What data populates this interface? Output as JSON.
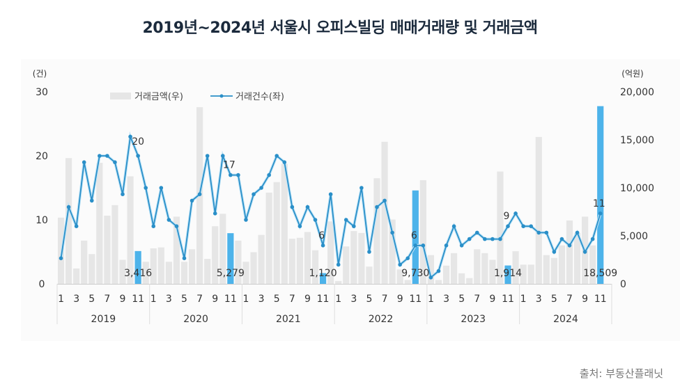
{
  "title": "2019년~2024년 서울시 오피스빌딩 매매거래량 및 거래금액",
  "source": "출처: 부동산플래닛",
  "colors": {
    "bar_default": "#e6e6e6",
    "bar_highlight": "#4db3ea",
    "line": "#2a8fc8",
    "title": "#1b2a3c"
  },
  "legend": {
    "bar_label": "거래금액(우)",
    "line_label": "거래건수(좌)"
  },
  "axes": {
    "left_unit": "(건)",
    "right_unit": "(억원)",
    "left_ticks": [
      "0",
      "10",
      "20",
      "30"
    ],
    "right_ticks": [
      "0",
      "5,000",
      "10,000",
      "15,000",
      "20,000"
    ]
  },
  "chart_data": {
    "type": "bar+line",
    "title": "2019년~2024년 서울시 오피스빌딩 매매거래량 및 거래금액",
    "xlabel": "",
    "ylabel_left": "(건)",
    "ylabel_right": "(억원)",
    "ylim_left": [
      0,
      30
    ],
    "ylim_right": [
      0,
      20000
    ],
    "years": [
      "2019",
      "2020",
      "2021",
      "2022",
      "2023",
      "2024"
    ],
    "month_tick_labels": [
      "1",
      "3",
      "5",
      "7",
      "9",
      "11"
    ],
    "x_range": "2019-01 to 2024-11",
    "series": [
      {
        "name": "거래금액(우)",
        "type": "bar",
        "axis": "right",
        "values": [
          6900,
          13100,
          1600,
          4500,
          3100,
          12600,
          7100,
          8200,
          2500,
          11200,
          3416,
          2300,
          3700,
          3800,
          2300,
          7000,
          2300,
          3600,
          18400,
          2600,
          6000,
          7300,
          5279,
          4500,
          2300,
          3300,
          5100,
          9500,
          10600,
          12500,
          4700,
          4800,
          5400,
          3500,
          1120,
          6500,
          300,
          3900,
          5500,
          5300,
          1800,
          11000,
          14800,
          6700,
          1500,
          400,
          9730,
          10800,
          3000,
          400,
          1900,
          3200,
          1100,
          600,
          3600,
          3200,
          2500,
          11700,
          1914,
          3400,
          2000,
          2000,
          15300,
          3000,
          2700,
          4000,
          6600,
          5300,
          7000,
          4000,
          18509
        ],
        "highlighted_months": [
          "2019-11",
          "2020-11",
          "2021-11",
          "2022-11",
          "2023-11",
          "2024-11"
        ],
        "data_labels": {
          "2019-11": "3,416",
          "2020-11": "5,279",
          "2021-11": "1,120",
          "2022-11": "9,730",
          "2023-11": "1,914",
          "2024-11": "18,509"
        }
      },
      {
        "name": "거래건수(좌)",
        "type": "line",
        "axis": "left",
        "values": [
          4,
          12,
          9,
          19,
          13,
          20,
          20,
          19,
          14,
          23,
          20,
          15,
          9,
          15,
          10,
          9,
          4,
          13,
          14,
          20,
          11,
          20,
          17,
          17,
          10,
          14,
          15,
          17,
          20,
          19,
          12,
          9,
          12,
          10,
          6,
          14,
          3,
          10,
          9,
          15,
          5,
          12,
          13,
          8,
          3,
          4,
          6,
          6,
          1,
          2,
          6,
          9,
          6,
          7,
          8,
          7,
          7,
          7,
          9,
          11,
          9,
          9,
          8,
          8,
          5,
          7,
          6,
          8,
          5,
          7,
          11
        ],
        "data_labels": {
          "2019-11": "20",
          "2020-11": "17",
          "2021-11": "6",
          "2022-11": "6",
          "2023-11": "9",
          "2024-11": "11"
        }
      }
    ],
    "legend_position": "top-center",
    "grid": false
  }
}
